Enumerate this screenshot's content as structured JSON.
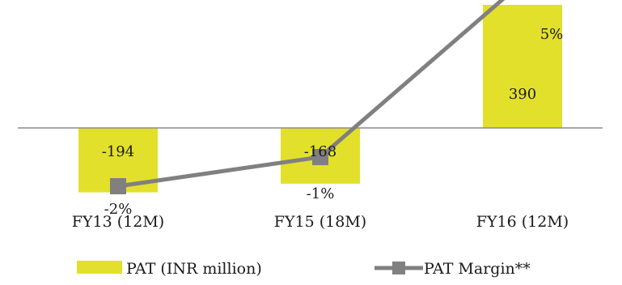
{
  "chart_data": {
    "type": "bar",
    "categories": [
      "FY13 (12M)",
      "FY15 (18M)",
      "FY16 (12M)"
    ],
    "series": [
      {
        "name": "PAT (INR million)",
        "type": "bar",
        "axis": "left",
        "values": [
          -194,
          -168,
          390
        ],
        "labels": [
          "-194",
          "-168",
          "390"
        ],
        "color": "#E2E02B"
      },
      {
        "name": "PAT Margin**",
        "type": "line",
        "axis": "right",
        "values": [
          -2,
          -1,
          5
        ],
        "labels": [
          "-2%",
          "-1%",
          "5%"
        ],
        "color": "#808080"
      }
    ],
    "ylim_left": [
      -200,
      390
    ],
    "ylim_right": [
      -10,
      5
    ],
    "gridlines": false,
    "legend_position": "bottom"
  }
}
